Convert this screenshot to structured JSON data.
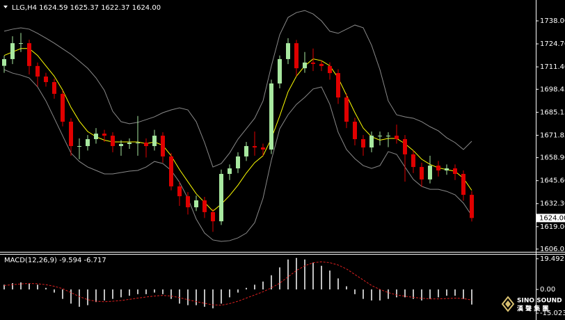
{
  "chart_data": [
    {
      "type": "candlestick",
      "title": "LLG,H4 1624.59 1625.37 1622.37 1624.00",
      "ylim": [
        1604.44,
        1750.07
      ],
      "yticks": [
        {
          "value": 1738,
          "label": "1738.00"
        },
        {
          "value": 1724.7,
          "label": "1724.70"
        },
        {
          "value": 1711.4,
          "label": "1711.40"
        },
        {
          "value": 1698.45,
          "label": "1698.45"
        },
        {
          "value": 1685.15,
          "label": "1685.15"
        },
        {
          "value": 1671.85,
          "label": "1671.85"
        },
        {
          "value": 1658.9,
          "label": "1658.90"
        },
        {
          "value": 1645.6,
          "label": "1645.60"
        },
        {
          "value": 1632.3,
          "label": "1632.30"
        },
        {
          "value": 1619,
          "label": "1619.00"
        },
        {
          "value": 1606.05,
          "label": "1606.05"
        }
      ],
      "last_price": {
        "value": 1624,
        "label": "1624.00"
      },
      "up_color": "#a8e8a0",
      "down_color": "#e00000",
      "open": [
        1712.0,
        1715.9,
        1725.1,
        1725.1,
        1711.9,
        1705.8,
        1702.6,
        1695.8,
        1679.7,
        1665.6,
        1665.6,
        1669.6,
        1672.8,
        1671.6,
        1665.6,
        1666.8,
        1667.6,
        1667.6,
        1665.6,
        1671.6,
        1659.6,
        1642.3,
        1636.6,
        1630.2,
        1634.2,
        1627.4,
        1622.1,
        1649.5,
        1652.7,
        1659.6,
        1665.6,
        1664.8,
        1663.6,
        1701.8,
        1715.9,
        1725.1,
        1710.6,
        1713.9,
        1713.1,
        1711.9,
        1707.8,
        1693.7,
        1679.7,
        1669.6,
        1664.8,
        1671.6,
        1671.6,
        1671.6,
        1669.6,
        1660.8,
        1653.5,
        1646.3,
        1654.3,
        1651.5,
        1652.7,
        1649.5,
        1637.4
      ],
      "high": [
        1717.9,
        1729.1,
        1731.0,
        1727.1,
        1713.9,
        1708.0,
        1704.6,
        1697.8,
        1681.7,
        1670.0,
        1672.0,
        1676.0,
        1675.0,
        1673.6,
        1669.0,
        1670.0,
        1683.0,
        1670.0,
        1675.0,
        1673.6,
        1661.6,
        1645.0,
        1639.0,
        1637.0,
        1636.2,
        1629.4,
        1652.0,
        1655.0,
        1662.0,
        1668.0,
        1674.0,
        1667.0,
        1704.0,
        1718.0,
        1728.0,
        1727.0,
        1720.0,
        1722.0,
        1715.0,
        1714.0,
        1710.0,
        1696.0,
        1682.0,
        1672.0,
        1674.0,
        1674.0,
        1673.6,
        1678.0,
        1672.0,
        1663.0,
        1656.0,
        1660.0,
        1657.0,
        1655.0,
        1655.0,
        1651.5,
        1639.5
      ],
      "low": [
        1708.0,
        1713.0,
        1720.0,
        1707.0,
        1700.0,
        1700.0,
        1693.0,
        1677.0,
        1660.0,
        1658.0,
        1663.0,
        1667.0,
        1668.0,
        1662.0,
        1660.0,
        1664.0,
        1660.0,
        1659.0,
        1663.0,
        1656.0,
        1640.0,
        1631.0,
        1626.0,
        1628.0,
        1624.0,
        1616.0,
        1620.0,
        1646.0,
        1650.0,
        1657.0,
        1660.0,
        1660.0,
        1661.0,
        1699.0,
        1713.0,
        1706.0,
        1708.0,
        1709.0,
        1709.0,
        1704.0,
        1690.0,
        1676.0,
        1666.0,
        1660.0,
        1662.0,
        1666.0,
        1665.0,
        1667.0,
        1645.0,
        1650.0,
        1642.0,
        1644.0,
        1648.0,
        1649.0,
        1646.0,
        1634.0,
        1622.0
      ],
      "close": [
        1715.9,
        1725.1,
        1725.1,
        1711.9,
        1705.8,
        1702.6,
        1695.8,
        1679.7,
        1665.6,
        1665.6,
        1669.6,
        1672.8,
        1671.6,
        1665.6,
        1666.8,
        1667.6,
        1667.6,
        1665.6,
        1671.6,
        1659.6,
        1642.3,
        1636.6,
        1630.2,
        1634.2,
        1627.4,
        1622.1,
        1649.5,
        1652.7,
        1659.6,
        1665.6,
        1664.8,
        1663.6,
        1701.8,
        1715.9,
        1725.1,
        1710.6,
        1713.9,
        1713.1,
        1711.9,
        1707.8,
        1693.7,
        1679.7,
        1669.6,
        1664.8,
        1671.6,
        1671.6,
        1671.6,
        1669.6,
        1660.8,
        1653.5,
        1646.3,
        1654.3,
        1651.5,
        1652.7,
        1649.5,
        1637.4,
        1624.0
      ],
      "overlays": [
        {
          "color": "#8a8a8a",
          "values": [
            1732.0,
            1733.2,
            1734.0,
            1733.2,
            1730.8,
            1728.0,
            1725.1,
            1721.9,
            1718.7,
            1714.7,
            1710.6,
            1705.0,
            1697.8,
            1685.7,
            1679.7,
            1678.5,
            1679.3,
            1680.9,
            1682.5,
            1684.9,
            1686.5,
            1687.7,
            1686.5,
            1679.7,
            1667.6,
            1653.5,
            1655.5,
            1661.6,
            1669.6,
            1675.6,
            1681.7,
            1691.7,
            1711.9,
            1730.0,
            1740.0,
            1742.8,
            1744.0,
            1742.0,
            1738.0,
            1732.0,
            1730.8,
            1733.2,
            1735.6,
            1734.0,
            1723.9,
            1709.8,
            1691.7,
            1683.7,
            1682.5,
            1681.7,
            1679.7,
            1676.8,
            1674.4,
            1670.4,
            1667.6,
            1663.6,
            1668.4
          ]
        },
        {
          "color": "#8a8a8a",
          "values": [
            1709.8,
            1707.8,
            1706.6,
            1705.0,
            1699.8,
            1691.7,
            1681.7,
            1671.6,
            1661.6,
            1656.7,
            1653.5,
            1651.5,
            1649.5,
            1649.5,
            1650.3,
            1651.1,
            1651.5,
            1653.5,
            1656.7,
            1655.5,
            1651.5,
            1644.7,
            1635.4,
            1623.4,
            1615.3,
            1611.3,
            1610.5,
            1610.9,
            1612.5,
            1615.3,
            1621.3,
            1635.4,
            1657.5,
            1675.6,
            1683.7,
            1689.7,
            1693.8,
            1698.6,
            1699.8,
            1689.7,
            1673.6,
            1663.6,
            1658.3,
            1654.3,
            1652.7,
            1654.3,
            1662.4,
            1660.8,
            1653.5,
            1646.3,
            1642.3,
            1640.6,
            1640.6,
            1639.4,
            1637.4,
            1632.6,
            1625.4
          ]
        },
        {
          "color": "#ffff00",
          "values": [
            1718,
            1720,
            1722,
            1722,
            1718,
            1712,
            1706,
            1698,
            1688,
            1680,
            1674,
            1671,
            1669,
            1668,
            1668,
            1668,
            1668,
            1667,
            1668,
            1666,
            1660,
            1652,
            1645,
            1638,
            1633,
            1628,
            1632,
            1637,
            1643,
            1650,
            1656,
            1660,
            1670,
            1683,
            1697,
            1706,
            1712,
            1716,
            1715,
            1712,
            1705,
            1695,
            1685,
            1676,
            1671,
            1669,
            1670,
            1670,
            1667,
            1663,
            1658,
            1655,
            1653,
            1652,
            1651,
            1647,
            1640
          ]
        }
      ]
    },
    {
      "type": "bar",
      "title": "MACD(12,26,9) -9.594 -6.717",
      "ylim": [
        -18.52,
        22.11
      ],
      "yticks": [
        19.492,
        {
          "value": 0,
          "label": "0.00"
        },
        -15.023
      ],
      "color": "#c0c0c0",
      "values": [
        3,
        4,
        4.5,
        4,
        3,
        1,
        -2,
        -6,
        -9,
        -11,
        -10,
        -8,
        -7,
        -6,
        -5,
        -4,
        -3,
        -3,
        -2,
        -3,
        -6,
        -9,
        -10,
        -10,
        -11,
        -12,
        -9,
        -5,
        -2,
        1,
        3,
        5,
        9,
        14,
        19,
        20,
        19,
        17,
        15,
        12,
        7,
        2,
        -3,
        -6,
        -7,
        -7,
        -6,
        -5,
        -5,
        -6,
        -7,
        -6,
        -5,
        -4,
        -4,
        -6,
        -9.594
      ],
      "signal": {
        "color": "#e02020",
        "values": [
          2.5,
          3,
          3.5,
          3.8,
          3.6,
          3,
          2,
          0.5,
          -2,
          -4.5,
          -6.5,
          -7.5,
          -7.8,
          -7.5,
          -7,
          -6.3,
          -5.5,
          -4.8,
          -4.2,
          -3.8,
          -4.2,
          -5.2,
          -6.5,
          -7.7,
          -8.8,
          -9.8,
          -10,
          -9,
          -7.5,
          -5.5,
          -3.5,
          -1.5,
          1,
          4,
          8,
          12,
          15,
          17,
          17.5,
          17,
          15.5,
          13,
          9.5,
          6,
          2.5,
          0,
          -2,
          -3.5,
          -4.3,
          -5,
          -5.6,
          -6,
          -6,
          -5.8,
          -5.5,
          -5.8,
          -6.717
        ]
      }
    }
  ],
  "logo": {
    "line1": "SINO SOUND",
    "line2": "漢 聲 集 團"
  }
}
